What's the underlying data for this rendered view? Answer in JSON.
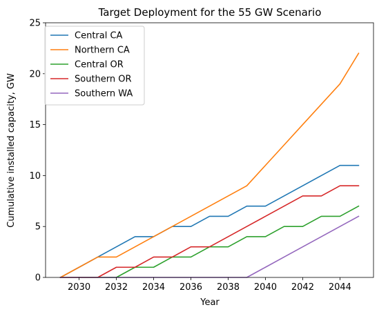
{
  "chart_data": {
    "type": "line",
    "title": "Target Deployment for the 55 GW Scenario",
    "xlabel": "Year",
    "ylabel": "Cumulative installed capacity, GW",
    "x": [
      2029,
      2030,
      2031,
      2032,
      2033,
      2034,
      2035,
      2036,
      2037,
      2038,
      2039,
      2040,
      2041,
      2042,
      2043,
      2044,
      2045
    ],
    "xlim": [
      2028.2,
      2045.8
    ],
    "ylim": [
      0,
      25
    ],
    "xticks": [
      2030,
      2032,
      2034,
      2036,
      2038,
      2040,
      2042,
      2044
    ],
    "yticks": [
      0,
      5,
      10,
      15,
      20,
      25
    ],
    "grid": false,
    "legend_position": "top-left",
    "series": [
      {
        "name": "Central CA",
        "color": "#1f77b4",
        "values": [
          0,
          1,
          2,
          3,
          4,
          4,
          5,
          5,
          6,
          6,
          7,
          7,
          8,
          9,
          10,
          11,
          11
        ]
      },
      {
        "name": "Northern CA",
        "color": "#ff7f0e",
        "values": [
          0,
          1,
          2,
          2,
          3,
          4,
          5,
          6,
          7,
          8,
          9,
          11,
          13,
          15,
          17,
          19,
          22
        ]
      },
      {
        "name": "Central OR",
        "color": "#2ca02c",
        "values": [
          0,
          0,
          0,
          0,
          1,
          1,
          2,
          2,
          3,
          3,
          4,
          4,
          5,
          5,
          6,
          6,
          7
        ]
      },
      {
        "name": "Southern OR",
        "color": "#d62728",
        "values": [
          0,
          0,
          0,
          1,
          1,
          2,
          2,
          3,
          3,
          4,
          5,
          6,
          7,
          8,
          8,
          9,
          9
        ]
      },
      {
        "name": "Southern WA",
        "color": "#9467bd",
        "values": [
          0,
          0,
          0,
          0,
          0,
          0,
          0,
          0,
          0,
          0,
          0,
          1,
          2,
          3,
          4,
          5,
          6
        ]
      }
    ]
  }
}
